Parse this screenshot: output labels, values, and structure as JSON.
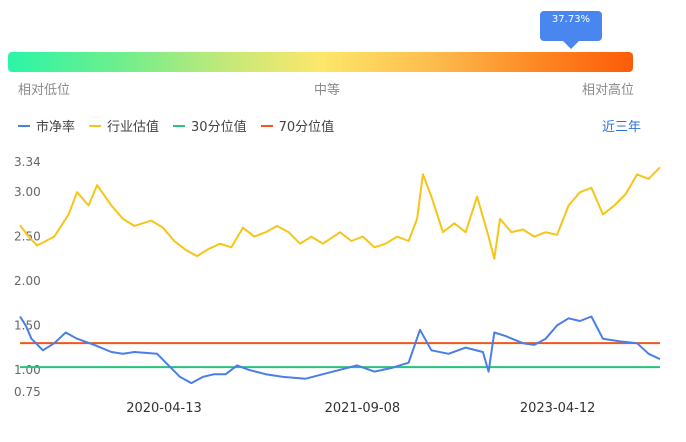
{
  "gauge": {
    "tooltip": "37.73%",
    "left_label": "相对低位",
    "mid_label": "中等",
    "right_label": "相对高位"
  },
  "legend": [
    {
      "label": "市净率",
      "color": "#4a7ee8"
    },
    {
      "label": "行业估值",
      "color": "#f5c518"
    },
    {
      "label": "30分位值",
      "color": "#21c77a"
    },
    {
      "label": "70分位值",
      "color": "#f0571a"
    }
  ],
  "range_button": "近三年",
  "chart_data": {
    "type": "line",
    "ylim": [
      0.75,
      3.34
    ],
    "y_ticks": [
      "3.34",
      "3.00",
      "2.50",
      "2.00",
      "1.50",
      "1.00",
      "0.75"
    ],
    "x_ticks": [
      "2020-04-13",
      "2021-09-08",
      "2023-04-12"
    ],
    "x_tick_positions": [
      0.225,
      0.535,
      0.84
    ],
    "series": [
      {
        "name": "行业估值",
        "color": "#f5c518",
        "points": [
          [
            0.0,
            2.63
          ],
          [
            0.015,
            2.5
          ],
          [
            0.03,
            2.4
          ],
          [
            0.06,
            2.5
          ],
          [
            0.085,
            2.75
          ],
          [
            0.1,
            3.0
          ],
          [
            0.12,
            2.85
          ],
          [
            0.135,
            3.08
          ],
          [
            0.16,
            2.85
          ],
          [
            0.18,
            2.7
          ],
          [
            0.2,
            2.62
          ],
          [
            0.23,
            2.68
          ],
          [
            0.25,
            2.6
          ],
          [
            0.27,
            2.45
          ],
          [
            0.29,
            2.35
          ],
          [
            0.31,
            2.28
          ],
          [
            0.33,
            2.36
          ],
          [
            0.35,
            2.42
          ],
          [
            0.37,
            2.38
          ],
          [
            0.39,
            2.6
          ],
          [
            0.41,
            2.5
          ],
          [
            0.43,
            2.55
          ],
          [
            0.45,
            2.62
          ],
          [
            0.47,
            2.55
          ],
          [
            0.49,
            2.42
          ],
          [
            0.51,
            2.5
          ],
          [
            0.53,
            2.42
          ],
          [
            0.56,
            2.55
          ],
          [
            0.58,
            2.45
          ],
          [
            0.6,
            2.5
          ],
          [
            0.62,
            2.38
          ],
          [
            0.64,
            2.42
          ],
          [
            0.66,
            2.5
          ],
          [
            0.68,
            2.45
          ],
          [
            0.695,
            2.7
          ],
          [
            0.705,
            3.2
          ],
          [
            0.72,
            2.95
          ],
          [
            0.74,
            2.55
          ],
          [
            0.76,
            2.65
          ],
          [
            0.78,
            2.55
          ],
          [
            0.8,
            2.95
          ],
          [
            0.82,
            2.5
          ],
          [
            0.83,
            2.25
          ],
          [
            0.84,
            2.7
          ],
          [
            0.86,
            2.55
          ],
          [
            0.88,
            2.58
          ],
          [
            0.9,
            2.5
          ],
          [
            0.92,
            2.55
          ],
          [
            0.94,
            2.52
          ],
          [
            0.96,
            2.85
          ],
          [
            0.98,
            3.0
          ],
          [
            1.0,
            3.05
          ],
          [
            1.02,
            2.75
          ],
          [
            1.04,
            2.85
          ],
          [
            1.06,
            2.98
          ],
          [
            1.08,
            3.2
          ],
          [
            1.1,
            3.15
          ],
          [
            1.12,
            3.28
          ]
        ]
      },
      {
        "name": "市净率",
        "color": "#4a7ee8",
        "points": [
          [
            0.0,
            1.6
          ],
          [
            0.01,
            1.5
          ],
          [
            0.02,
            1.35
          ],
          [
            0.04,
            1.22
          ],
          [
            0.06,
            1.3
          ],
          [
            0.08,
            1.42
          ],
          [
            0.1,
            1.35
          ],
          [
            0.13,
            1.28
          ],
          [
            0.16,
            1.2
          ],
          [
            0.18,
            1.18
          ],
          [
            0.2,
            1.2
          ],
          [
            0.24,
            1.18
          ],
          [
            0.26,
            1.05
          ],
          [
            0.28,
            0.92
          ],
          [
            0.3,
            0.85
          ],
          [
            0.32,
            0.92
          ],
          [
            0.34,
            0.95
          ],
          [
            0.36,
            0.95
          ],
          [
            0.38,
            1.05
          ],
          [
            0.4,
            1.0
          ],
          [
            0.43,
            0.95
          ],
          [
            0.46,
            0.92
          ],
          [
            0.5,
            0.9
          ],
          [
            0.53,
            0.95
          ],
          [
            0.56,
            1.0
          ],
          [
            0.59,
            1.05
          ],
          [
            0.62,
            0.98
          ],
          [
            0.65,
            1.02
          ],
          [
            0.68,
            1.08
          ],
          [
            0.7,
            1.45
          ],
          [
            0.72,
            1.22
          ],
          [
            0.75,
            1.18
          ],
          [
            0.78,
            1.25
          ],
          [
            0.81,
            1.2
          ],
          [
            0.82,
            0.98
          ],
          [
            0.83,
            1.42
          ],
          [
            0.85,
            1.38
          ],
          [
            0.88,
            1.3
          ],
          [
            0.9,
            1.28
          ],
          [
            0.92,
            1.35
          ],
          [
            0.94,
            1.5
          ],
          [
            0.96,
            1.58
          ],
          [
            0.98,
            1.55
          ],
          [
            1.0,
            1.6
          ],
          [
            1.02,
            1.35
          ],
          [
            1.05,
            1.32
          ],
          [
            1.08,
            1.3
          ],
          [
            1.1,
            1.18
          ],
          [
            1.12,
            1.12
          ]
        ]
      }
    ],
    "p30": 1.03,
    "p70": 1.3
  }
}
